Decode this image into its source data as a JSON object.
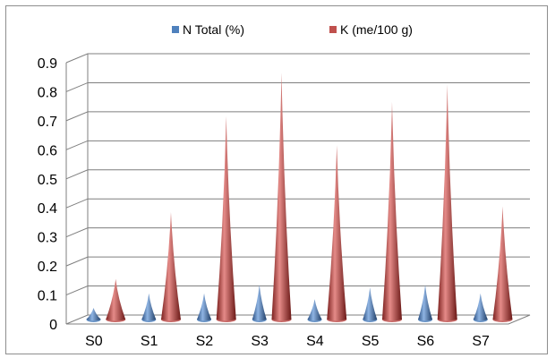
{
  "chart_data": {
    "type": "bar",
    "style": "3d-cone",
    "title": "",
    "xlabel": "",
    "ylabel": "",
    "categories": [
      "S0",
      "S1",
      "S2",
      "S3",
      "S4",
      "S5",
      "S6",
      "S7"
    ],
    "series": [
      {
        "name": "N Total (%)",
        "color": "#4f81bd",
        "values": [
          0.04,
          0.09,
          0.09,
          0.12,
          0.07,
          0.11,
          0.12,
          0.09
        ]
      },
      {
        "name": "K (me/100 g)",
        "color": "#c0504d",
        "values": [
          0.14,
          0.37,
          0.7,
          0.85,
          0.6,
          0.75,
          0.81,
          0.39
        ]
      }
    ],
    "ylim": [
      0,
      0.9
    ],
    "yticks": [
      "0",
      "0.1",
      "0.2",
      "0.3",
      "0.4",
      "0.5",
      "0.6",
      "0.7",
      "0.8",
      "0.9"
    ],
    "grid": true,
    "legend_position": "top"
  }
}
